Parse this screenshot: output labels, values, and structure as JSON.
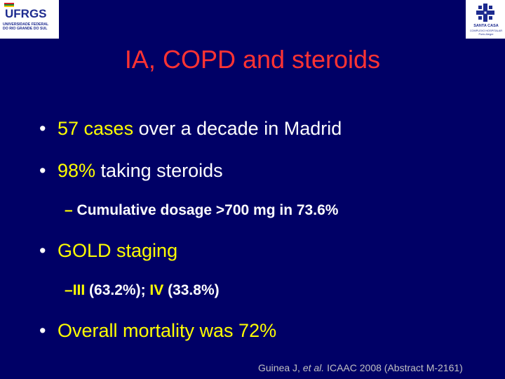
{
  "logos": {
    "left": {
      "name": "UFRGS",
      "sub_line1": "UNIVERSIDADE FEDERAL",
      "sub_line2": "DO RIO GRANDE DO SUL"
    },
    "right": {
      "name_line1": "SANTA CASA",
      "name_line2": "COMPLEXO HOSPITALAR",
      "name_line3": "Porto Alegre"
    }
  },
  "title": "IA, COPD and steroids",
  "bullets": [
    {
      "dot": "•",
      "highlight": "57 cases",
      "rest": " over a decade in Madrid"
    },
    {
      "dot": "•",
      "highlight": "98%",
      "rest": " taking steroids"
    },
    {
      "dot": "•",
      "highlight": "GOLD staging",
      "rest": ""
    },
    {
      "dot": "•",
      "highlight": "Overall mortality was 72%",
      "rest": ""
    }
  ],
  "sub_bullets": [
    {
      "dash": "–",
      "text": " Cumulative dosage >700 mg in 73.6%"
    },
    {
      "dash": "–",
      "parts": [
        "III",
        " (63.2%); ",
        "IV",
        " (33.8%)"
      ]
    }
  ],
  "citation": {
    "pre": "Guinea J, ",
    "etal": "et al.",
    "post": " ICAAC 2008 (Abstract M-2161)"
  },
  "colors": {
    "background": "#000066",
    "title": "#ff3333",
    "highlight": "#ffff00",
    "text": "#ffffff"
  }
}
